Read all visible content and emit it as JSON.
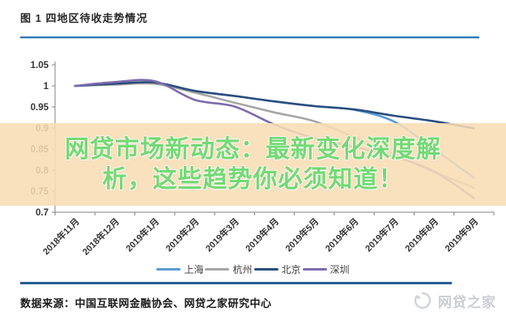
{
  "figure_title": "图 1 四地区待收走势情况",
  "overlay": {
    "line1": "网贷市场新动态：最新变化深度解",
    "line2": "析，这些趋势你必须知道！",
    "text_color": "#74D976",
    "band_color": "#F8DCB4",
    "band_opacity": 0.87
  },
  "source_note": "数据来源：中国互联网金融协会、网贷之家研究中心",
  "watermark": {
    "brand": "网贷之家",
    "icon": "wdzj-circle-logo"
  },
  "colors": {
    "divider": "#2E75B6",
    "bottom_bar": "#255E91",
    "axis": "#808080",
    "tick_label": "#333333"
  },
  "chart_data": {
    "type": "line",
    "title": "图 1 四地区待收走势情况",
    "xlabel": "",
    "ylabel": "",
    "grid": false,
    "legend_position": "bottom",
    "ylim": [
      0.7,
      1.05
    ],
    "yticks": [
      1.05,
      1,
      0.95,
      0.9,
      0.85,
      0.8,
      0.75,
      0.7
    ],
    "categories": [
      "2018年11月",
      "2018年12月",
      "2019年1月",
      "2019年2月",
      "2019年3月",
      "2019年4月",
      "2019年5月",
      "2019年6月",
      "2019年7月",
      "2019年8月",
      "2019年9月"
    ],
    "series": [
      {
        "name": "上海",
        "color": "#5B9BD5",
        "values": [
          1.0,
          1.004,
          1.006,
          0.988,
          0.976,
          0.963,
          0.952,
          0.943,
          0.915,
          0.85,
          0.782
        ]
      },
      {
        "name": "杭州",
        "color": "#A6A6A6",
        "values": [
          1.0,
          1.003,
          1.005,
          0.984,
          0.96,
          0.937,
          0.916,
          0.878,
          0.838,
          0.796,
          0.758
        ]
      },
      {
        "name": "北京",
        "color": "#2A4E7E",
        "values": [
          1.0,
          1.005,
          1.008,
          0.988,
          0.976,
          0.963,
          0.952,
          0.944,
          0.929,
          0.916,
          0.899
        ]
      },
      {
        "name": "深圳",
        "color": "#7E6BAD",
        "values": [
          1.0,
          1.009,
          1.011,
          0.967,
          0.951,
          0.908,
          0.876,
          0.855,
          0.832,
          0.797,
          0.734
        ]
      }
    ]
  }
}
